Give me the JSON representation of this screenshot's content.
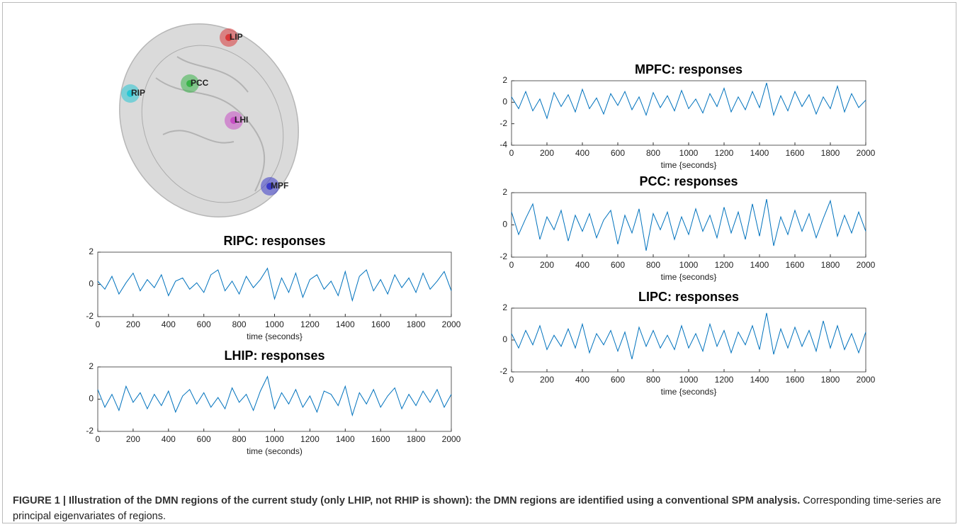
{
  "brain": {
    "nodes": [
      {
        "label": "LIP",
        "color": "#d9393a"
      },
      {
        "label": "PCC",
        "color": "#3bb44a"
      },
      {
        "label": "RIP",
        "color": "#28c7d4"
      },
      {
        "label": "LHI",
        "color": "#c64fc4"
      },
      {
        "label": "MPF",
        "color": "#3a3ac8"
      }
    ]
  },
  "chart_data": [
    {
      "type": "line",
      "title": "RIPC: responses",
      "x_label": "time {seconds}",
      "x": [
        0,
        40,
        80,
        120,
        160,
        200,
        240,
        280,
        320,
        360,
        400,
        440,
        480,
        520,
        560,
        600,
        640,
        680,
        720,
        760,
        800,
        840,
        880,
        920,
        960,
        1000,
        1040,
        1080,
        1120,
        1160,
        1200,
        1240,
        1280,
        1320,
        1360,
        1400,
        1440,
        1480,
        1520,
        1560,
        1600,
        1640,
        1680,
        1720,
        1760,
        1800,
        1840,
        1880,
        1920,
        1960,
        2000
      ],
      "values": [
        0.2,
        -0.3,
        0.5,
        -0.6,
        0.1,
        0.7,
        -0.4,
        0.3,
        -0.2,
        0.6,
        -0.7,
        0.2,
        0.4,
        -0.3,
        0.1,
        -0.5,
        0.6,
        0.9,
        -0.4,
        0.2,
        -0.6,
        0.5,
        -0.2,
        0.3,
        1.0,
        -0.9,
        0.4,
        -0.5,
        0.7,
        -0.8,
        0.3,
        0.6,
        -0.3,
        0.2,
        -0.7,
        0.8,
        -1.0,
        0.5,
        0.9,
        -0.4,
        0.3,
        -0.6,
        0.6,
        -0.2,
        0.4,
        -0.5,
        0.7,
        -0.3,
        0.2,
        0.8,
        -0.4
      ],
      "color": "#0072bd",
      "xlim": [
        0,
        2000
      ],
      "xticks": [
        0,
        200,
        400,
        600,
        800,
        1000,
        1200,
        1400,
        1600,
        1800,
        2000
      ],
      "ylim": [
        -2,
        2
      ],
      "yticks": [
        -2,
        0,
        2
      ]
    },
    {
      "type": "line",
      "title": "LHIP: responses",
      "x_label": "time (seconds)",
      "x": [
        0,
        40,
        80,
        120,
        160,
        200,
        240,
        280,
        320,
        360,
        400,
        440,
        480,
        520,
        560,
        600,
        640,
        680,
        720,
        760,
        800,
        840,
        880,
        920,
        960,
        1000,
        1040,
        1080,
        1120,
        1160,
        1200,
        1240,
        1280,
        1320,
        1360,
        1400,
        1440,
        1480,
        1520,
        1560,
        1600,
        1640,
        1680,
        1720,
        1760,
        1800,
        1840,
        1880,
        1920,
        1960,
        2000
      ],
      "values": [
        0.6,
        -0.5,
        0.3,
        -0.7,
        0.8,
        -0.2,
        0.4,
        -0.6,
        0.3,
        -0.4,
        0.5,
        -0.8,
        0.2,
        0.6,
        -0.3,
        0.4,
        -0.5,
        0.1,
        -0.6,
        0.7,
        -0.2,
        0.3,
        -0.7,
        0.5,
        1.4,
        -0.6,
        0.4,
        -0.3,
        0.6,
        -0.5,
        0.2,
        -0.8,
        0.5,
        0.3,
        -0.4,
        0.8,
        -1.0,
        0.4,
        -0.3,
        0.6,
        -0.5,
        0.2,
        0.7,
        -0.6,
        0.3,
        -0.4,
        0.5,
        -0.2,
        0.6,
        -0.5,
        0.3
      ],
      "color": "#0072bd",
      "xlim": [
        0,
        2000
      ],
      "xticks": [
        0,
        200,
        400,
        600,
        800,
        1000,
        1200,
        1400,
        1600,
        1800,
        2000
      ],
      "ylim": [
        -2,
        2
      ],
      "yticks": [
        -2,
        0,
        2
      ]
    },
    {
      "type": "line",
      "title": "MPFC: responses",
      "x_label": "time {seconds}",
      "x": [
        0,
        40,
        80,
        120,
        160,
        200,
        240,
        280,
        320,
        360,
        400,
        440,
        480,
        520,
        560,
        600,
        640,
        680,
        720,
        760,
        800,
        840,
        880,
        920,
        960,
        1000,
        1040,
        1080,
        1120,
        1160,
        1200,
        1240,
        1280,
        1320,
        1360,
        1400,
        1440,
        1480,
        1520,
        1560,
        1600,
        1640,
        1680,
        1720,
        1760,
        1800,
        1840,
        1880,
        1920,
        1960,
        2000
      ],
      "values": [
        0.5,
        -0.6,
        1.0,
        -0.8,
        0.3,
        -1.5,
        0.9,
        -0.4,
        0.7,
        -0.9,
        1.2,
        -0.6,
        0.4,
        -1.1,
        0.8,
        -0.3,
        1.0,
        -0.7,
        0.5,
        -1.2,
        0.9,
        -0.5,
        0.6,
        -0.8,
        1.1,
        -0.6,
        0.3,
        -1.0,
        0.8,
        -0.4,
        1.3,
        -0.9,
        0.5,
        -0.7,
        1.0,
        -0.5,
        1.8,
        -1.2,
        0.6,
        -0.8,
        1.0,
        -0.4,
        0.7,
        -1.1,
        0.5,
        -0.6,
        1.5,
        -0.9,
        0.8,
        -0.5,
        0.2
      ],
      "color": "#0072bd",
      "xlim": [
        0,
        2000
      ],
      "xticks": [
        0,
        200,
        400,
        600,
        800,
        1000,
        1200,
        1400,
        1600,
        1800,
        2000
      ],
      "ylim": [
        -4,
        2
      ],
      "yticks": [
        -4,
        -2,
        0,
        2
      ]
    },
    {
      "type": "line",
      "title": "PCC: responses",
      "x_label": "time {seconds}",
      "x": [
        0,
        40,
        80,
        120,
        160,
        200,
        240,
        280,
        320,
        360,
        400,
        440,
        480,
        520,
        560,
        600,
        640,
        680,
        720,
        760,
        800,
        840,
        880,
        920,
        960,
        1000,
        1040,
        1080,
        1120,
        1160,
        1200,
        1240,
        1280,
        1320,
        1360,
        1400,
        1440,
        1480,
        1520,
        1560,
        1600,
        1640,
        1680,
        1720,
        1760,
        1800,
        1840,
        1880,
        1920,
        1960,
        2000
      ],
      "values": [
        0.8,
        -0.6,
        0.4,
        1.3,
        -0.9,
        0.5,
        -0.3,
        0.9,
        -1.0,
        0.6,
        -0.4,
        0.7,
        -0.8,
        0.3,
        0.9,
        -1.2,
        0.6,
        -0.5,
        1.0,
        -1.6,
        0.7,
        -0.3,
        0.8,
        -0.9,
        0.5,
        -0.6,
        1.0,
        -0.4,
        0.6,
        -0.8,
        1.1,
        -0.5,
        0.8,
        -0.9,
        1.3,
        -0.7,
        1.6,
        -1.3,
        0.5,
        -0.6,
        0.9,
        -0.4,
        0.7,
        -0.8,
        0.4,
        1.5,
        -0.7,
        0.6,
        -0.5,
        0.8,
        -0.4
      ],
      "color": "#0072bd",
      "xlim": [
        0,
        2000
      ],
      "xticks": [
        0,
        200,
        400,
        600,
        800,
        1000,
        1200,
        1400,
        1600,
        1800,
        2000
      ],
      "ylim": [
        -2,
        2
      ],
      "yticks": [
        -2,
        0,
        2
      ]
    },
    {
      "type": "line",
      "title": "LIPC: responses",
      "x_label": "time {seconds}",
      "x": [
        0,
        40,
        80,
        120,
        160,
        200,
        240,
        280,
        320,
        360,
        400,
        440,
        480,
        520,
        560,
        600,
        640,
        680,
        720,
        760,
        800,
        840,
        880,
        920,
        960,
        1000,
        1040,
        1080,
        1120,
        1160,
        1200,
        1240,
        1280,
        1320,
        1360,
        1400,
        1440,
        1480,
        1520,
        1560,
        1600,
        1640,
        1680,
        1720,
        1760,
        1800,
        1840,
        1880,
        1920,
        1960,
        2000
      ],
      "values": [
        0.4,
        -0.5,
        0.6,
        -0.3,
        0.9,
        -0.6,
        0.3,
        -0.4,
        0.7,
        -0.5,
        1.0,
        -0.8,
        0.4,
        -0.3,
        0.6,
        -0.7,
        0.5,
        -1.2,
        0.8,
        -0.4,
        0.6,
        -0.5,
        0.3,
        -0.6,
        0.9,
        -0.5,
        0.4,
        -0.7,
        1.0,
        -0.4,
        0.6,
        -0.8,
        0.5,
        -0.3,
        0.9,
        -0.6,
        1.7,
        -0.9,
        0.7,
        -0.5,
        0.8,
        -0.4,
        0.6,
        -0.7,
        1.2,
        -0.5,
        0.9,
        -0.6,
        0.4,
        -0.8,
        0.5
      ],
      "color": "#0072bd",
      "xlim": [
        0,
        2000
      ],
      "xticks": [
        0,
        200,
        400,
        600,
        800,
        1000,
        1200,
        1400,
        1600,
        1800,
        2000
      ],
      "ylim": [
        -2,
        2
      ],
      "yticks": [
        -2,
        0,
        2
      ]
    }
  ],
  "caption": {
    "bold": "FIGURE 1 | Illustration of the DMN regions of the current study (only LHIP, not RHIP is shown): the DMN regions are identified using a conventional SPM analysis.",
    "text": "Corresponding time-series are principal eigenvariates of regions."
  }
}
